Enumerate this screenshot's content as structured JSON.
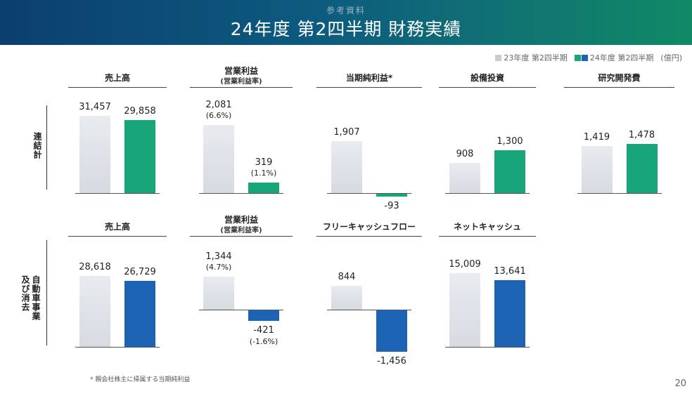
{
  "header": {
    "ref_label": "参考資料",
    "title": "24年度 第2四半期 財務実績"
  },
  "legend": {
    "items": [
      {
        "label": "23年度 第2四半期",
        "color": "#d6dbe2"
      },
      {
        "label": "24年度 第2四半期",
        "color": "#17a57a"
      }
    ],
    "extra_swatch_color": "#1c64b3",
    "unit": "(億円)"
  },
  "sections": {
    "consolidated": "連結計",
    "auto": "自動車事業及び消去"
  },
  "footnote": "* 親会社株主に帰属する当期純利益",
  "page_number": "20",
  "colors": {
    "prev": "#d6dbe2",
    "curr_consolidated": "#17a57a",
    "curr_auto": "#1c64b3"
  },
  "chart_data": [
    {
      "type": "bar",
      "title": "売上高",
      "section": "連結計",
      "categories": [
        "23年度 第2四半期",
        "24年度 第2四半期"
      ],
      "values": [
        31457,
        29858
      ],
      "labels": [
        "31,457",
        "29,858"
      ]
    },
    {
      "type": "bar",
      "title": "営業利益",
      "subtitle": "(営業利益率)",
      "section": "連結計",
      "categories": [
        "23年度 第2四半期",
        "24年度 第2四半期"
      ],
      "values": [
        2081,
        319
      ],
      "labels": [
        "2,081",
        "319"
      ],
      "rates": [
        "(6.6%)",
        "(1.1%)"
      ]
    },
    {
      "type": "bar",
      "title": "当期純利益*",
      "section": "連結計",
      "categories": [
        "23年度 第2四半期",
        "24年度 第2四半期"
      ],
      "values": [
        1907,
        -93
      ],
      "labels": [
        "1,907",
        "-93"
      ]
    },
    {
      "type": "bar",
      "title": "設備投資",
      "section": "連結計",
      "categories": [
        "23年度 第2四半期",
        "24年度 第2四半期"
      ],
      "values": [
        908,
        1300
      ],
      "labels": [
        "908",
        "1,300"
      ]
    },
    {
      "type": "bar",
      "title": "研究開発費",
      "section": "連結計",
      "categories": [
        "23年度 第2四半期",
        "24年度 第2四半期"
      ],
      "values": [
        1419,
        1478
      ],
      "labels": [
        "1,419",
        "1,478"
      ]
    },
    {
      "type": "bar",
      "title": "売上高",
      "section": "自動車事業及び消去",
      "categories": [
        "23年度 第2四半期",
        "24年度 第2四半期"
      ],
      "values": [
        28618,
        26729
      ],
      "labels": [
        "28,618",
        "26,729"
      ]
    },
    {
      "type": "bar",
      "title": "営業利益",
      "subtitle": "(営業利益率)",
      "section": "自動車事業及び消去",
      "categories": [
        "23年度 第2四半期",
        "24年度 第2四半期"
      ],
      "values": [
        1344,
        -421
      ],
      "labels": [
        "1,344",
        "-421"
      ],
      "rates": [
        "(4.7%)",
        "(-1.6%)"
      ]
    },
    {
      "type": "bar",
      "title": "フリーキャッシュフロー",
      "section": "自動車事業及び消去",
      "categories": [
        "23年度 第2四半期",
        "24年度 第2四半期"
      ],
      "values": [
        844,
        -1456
      ],
      "labels": [
        "844",
        "-1,456"
      ]
    },
    {
      "type": "bar",
      "title": "ネットキャッシュ",
      "section": "自動車事業及び消去",
      "categories": [
        "23年度 第2四半期",
        "24年度 第2四半期"
      ],
      "values": [
        15009,
        13641
      ],
      "labels": [
        "15,009",
        "13,641"
      ]
    }
  ]
}
